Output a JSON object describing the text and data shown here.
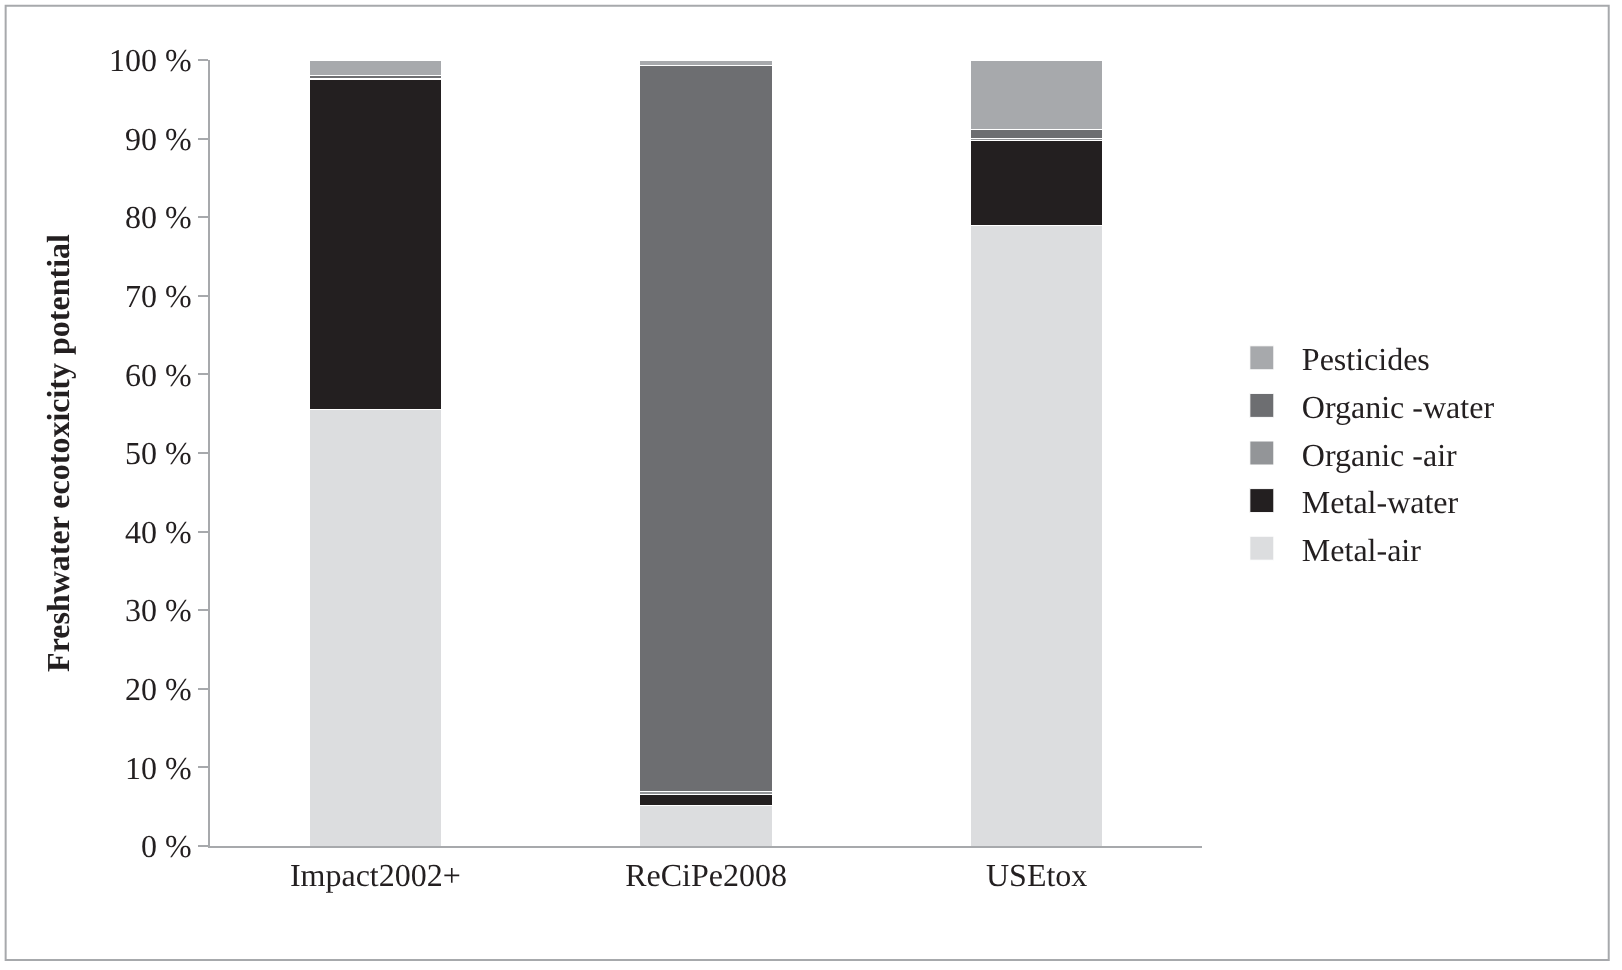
{
  "chart_data": {
    "type": "bar",
    "stacked": true,
    "ylabel": "Freshwater ecotoxicity potential",
    "categories": [
      "Impact2002+",
      "ReCiPe2008",
      "USEtox"
    ],
    "series": [
      {
        "name": "Metal-air",
        "color": "#dcdddf",
        "values": [
          55.5,
          5.2,
          78.9
        ]
      },
      {
        "name": "Metal-water",
        "color": "#231f20",
        "values": [
          42.0,
          1.4,
          10.8
        ]
      },
      {
        "name": "Organic -air",
        "color": "#939598",
        "values": [
          0.2,
          0.3,
          0.3
        ]
      },
      {
        "name": "Organic -water",
        "color": "#6d6e71",
        "values": [
          0.3,
          92.4,
          1.2
        ]
      },
      {
        "name": "Pesticides",
        "color": "#a7a9ac",
        "values": [
          2.0,
          0.7,
          8.8
        ]
      }
    ],
    "ylim": [
      0,
      100
    ],
    "yticks": [
      {
        "value": 0,
        "label": "0 %"
      },
      {
        "value": 10,
        "label": "10 %"
      },
      {
        "value": 20,
        "label": "20 %"
      },
      {
        "value": 30,
        "label": "30 %"
      },
      {
        "value": 40,
        "label": "40 %"
      },
      {
        "value": 50,
        "label": "50 %"
      },
      {
        "value": 60,
        "label": "60 %"
      },
      {
        "value": 70,
        "label": "70 %"
      },
      {
        "value": 80,
        "label": "80 %"
      },
      {
        "value": 90,
        "label": "90 %"
      },
      {
        "value": 100,
        "label": "100 %"
      }
    ],
    "legend": "right"
  }
}
